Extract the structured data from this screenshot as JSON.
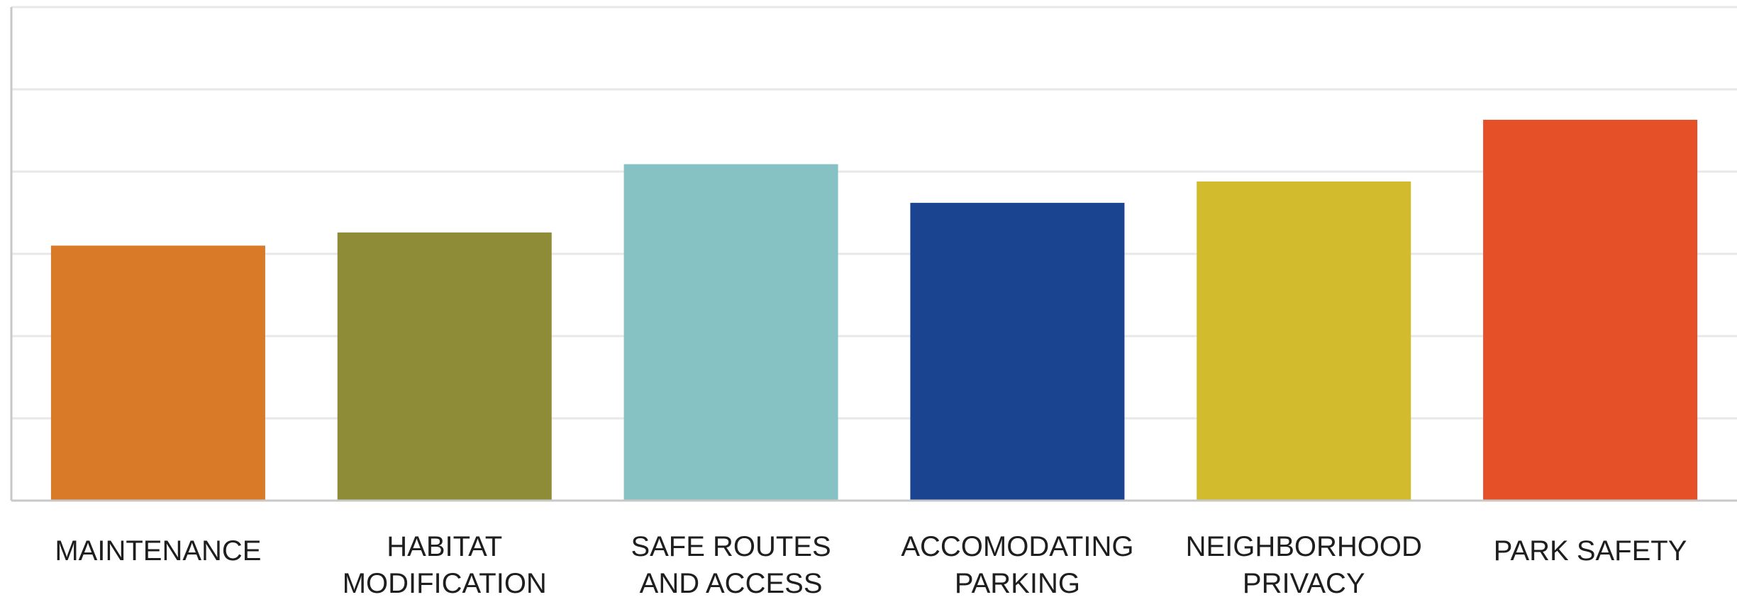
{
  "chart_data": {
    "type": "bar",
    "categories": [
      [
        "MAINTENANCE"
      ],
      [
        "HABITAT",
        "MODIFICATION"
      ],
      [
        "SAFE ROUTES",
        "AND ACCESS"
      ],
      [
        "ACCOMODATING",
        "PARKING"
      ],
      [
        "NEIGHBORHOOD",
        "PRIVACY"
      ],
      [
        "PARK SAFETY"
      ]
    ],
    "values": [
      3.1,
      3.26,
      4.09,
      3.62,
      3.88,
      4.63
    ],
    "colors": [
      "#D87A28",
      "#8E8C36",
      "#86C2C3",
      "#1A4390",
      "#D2BB2C",
      "#E65028"
    ],
    "title": "",
    "xlabel": "",
    "ylabel": "",
    "ylim": [
      0,
      6
    ],
    "grid": true,
    "legend": "none",
    "axis_color": "#c8c8c8",
    "grid_color": "#e8e8e8"
  }
}
